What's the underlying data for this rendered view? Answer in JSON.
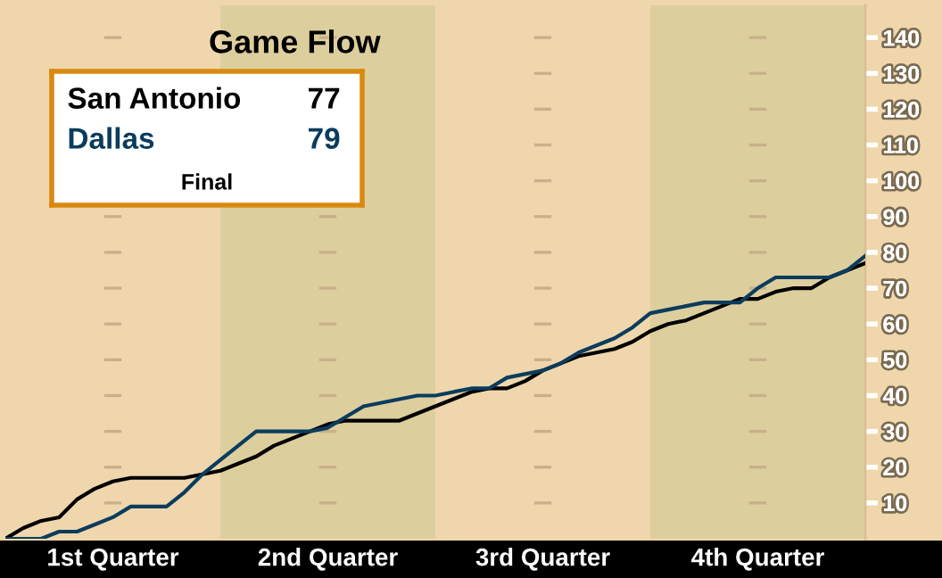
{
  "chart_data": {
    "type": "line",
    "title": "Game Flow",
    "categories": [
      null,
      null,
      null,
      null,
      null,
      null,
      null,
      null,
      null,
      null,
      null,
      null,
      null,
      null,
      null,
      null,
      null,
      null,
      null,
      null,
      null,
      null,
      null,
      null,
      null,
      null,
      null,
      null,
      null,
      null,
      null,
      null,
      null,
      null,
      null,
      null,
      null,
      null,
      null,
      null,
      null,
      null,
      null,
      null,
      null,
      null,
      null,
      null,
      null
    ],
    "series": [
      {
        "name": "San Antonio",
        "color": "#000000",
        "values": [
          0,
          3,
          5,
          6,
          11,
          14,
          16,
          17,
          17,
          17,
          17,
          18,
          19,
          21,
          23,
          26,
          28,
          30,
          32,
          33,
          33,
          33,
          33,
          35,
          37,
          39,
          41,
          42,
          42,
          44,
          47,
          49,
          51,
          52,
          53,
          55,
          58,
          60,
          61,
          63,
          65,
          67,
          67,
          69,
          70,
          70,
          73,
          75,
          77
        ]
      },
      {
        "name": "Dallas",
        "color": "#0b3c5d",
        "values": [
          0,
          0,
          0,
          2,
          2,
          4,
          6,
          9,
          9,
          9,
          13,
          18,
          22,
          26,
          30,
          30,
          30,
          30,
          31,
          34,
          37,
          38,
          39,
          40,
          40,
          41,
          42,
          42,
          45,
          46,
          47,
          49,
          52,
          54,
          56,
          59,
          63,
          64,
          65,
          66,
          66,
          66,
          70,
          73,
          73,
          73,
          73,
          75,
          79
        ]
      }
    ],
    "annotations": [
      "77",
      "79",
      "Final",
      "1st Quarter",
      "2nd Quarter",
      "3rd Quarter",
      "4th Quarter"
    ],
    "ylim": [
      0,
      149
    ],
    "yticks": [
      10,
      20,
      30,
      40,
      50,
      60,
      70,
      80,
      90,
      100,
      110,
      120,
      130,
      140
    ],
    "tick_labels": "y",
    "marker": "none",
    "line_style": "solid"
  }
}
